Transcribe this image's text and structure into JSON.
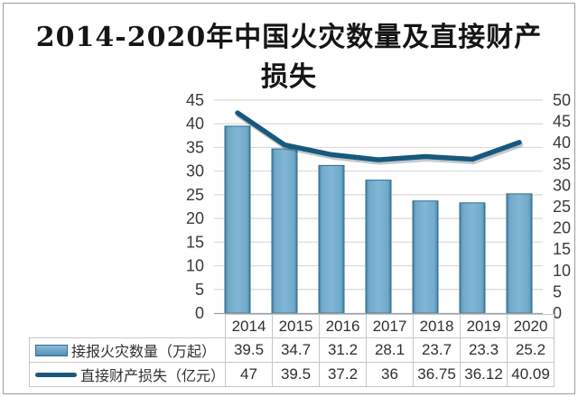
{
  "title": "2014-2020年中国火灾数量及直接财产损失",
  "title_lines": [
    "2014-2020年中国火灾数量及直接财产",
    "损失"
  ],
  "chart_data": {
    "type": "bar+line combo",
    "title": "2014-2020年中国火灾数量及直接财产损失",
    "categories": [
      "2014",
      "2015",
      "2016",
      "2017",
      "2018",
      "2019",
      "2020"
    ],
    "series": [
      {
        "name": "接报火灾数量（万起）",
        "type": "bar",
        "axis": "left",
        "values": [
          39.5,
          34.7,
          31.2,
          28.1,
          23.7,
          23.3,
          25.2
        ]
      },
      {
        "name": "直接财产损失（亿元）",
        "type": "line",
        "axis": "right",
        "values": [
          47,
          39.5,
          37.2,
          36,
          36.75,
          36.12,
          40.09
        ]
      }
    ],
    "left_axis": {
      "min": 0,
      "max": 45,
      "step": 5
    },
    "right_axis": {
      "min": 0,
      "max": 50,
      "step": 5
    },
    "grid": true,
    "legend_position": "table-left-of-data-rows",
    "colors": {
      "bar_fill": "#6fa9ca",
      "bar_fill_light": "#82b6d4",
      "bar_fill_dark": "#3f7d9e",
      "bar_border": "#2f6e8e",
      "line": "#17597e",
      "line_shadow": "rgba(45,65,75,0.28)",
      "gridline": "#d9d9d9",
      "axis_line": "#9aa0a6",
      "axis_text": "#3a3a3a",
      "table_border": "#c6c6c6",
      "table_text": "#2f2f2f",
      "title_text": "#151515",
      "frame_border": "#9c9c9c",
      "background": "#ffffff"
    }
  }
}
